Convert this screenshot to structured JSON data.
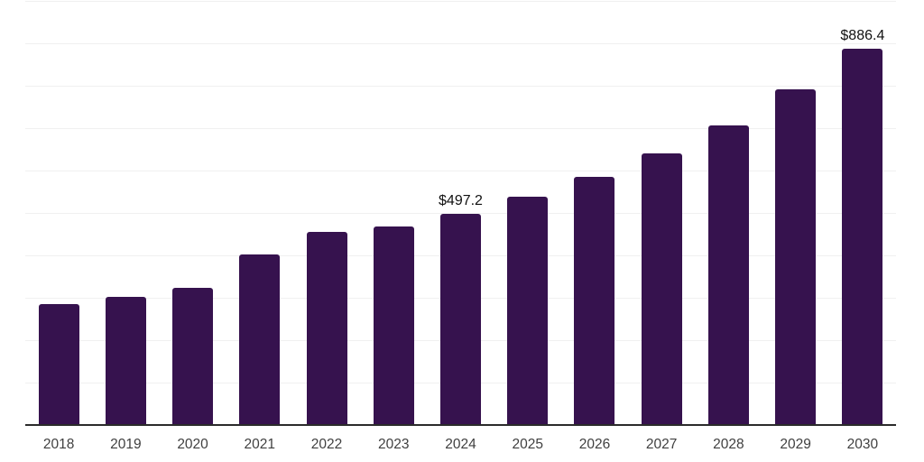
{
  "chart_data": {
    "type": "bar",
    "title": "",
    "xlabel": "",
    "ylabel": "",
    "categories": [
      "2018",
      "2019",
      "2020",
      "2021",
      "2022",
      "2023",
      "2024",
      "2025",
      "2026",
      "2027",
      "2028",
      "2029",
      "2030"
    ],
    "values": [
      285.0,
      301.5,
      322.5,
      401.5,
      456.0,
      467.5,
      497.2,
      537.5,
      586.0,
      640.0,
      707.0,
      792.5,
      886.4
    ],
    "value_labels": [
      "",
      "",
      "",
      "",
      "",
      "",
      "$497.2",
      "",
      "",
      "",
      "",
      "",
      "$886.4"
    ],
    "ylim": [
      0,
      1000
    ],
    "gridline_step": 100,
    "grid": "horizontal",
    "legend_position": "none",
    "currency_prefix": "$"
  },
  "colors": {
    "background": "#ffffff",
    "bar": "#36124E",
    "axis_line": "#2b2b2b",
    "gridline": "#f0f0f0",
    "tick_label": "#404040",
    "data_label": "#111111"
  }
}
